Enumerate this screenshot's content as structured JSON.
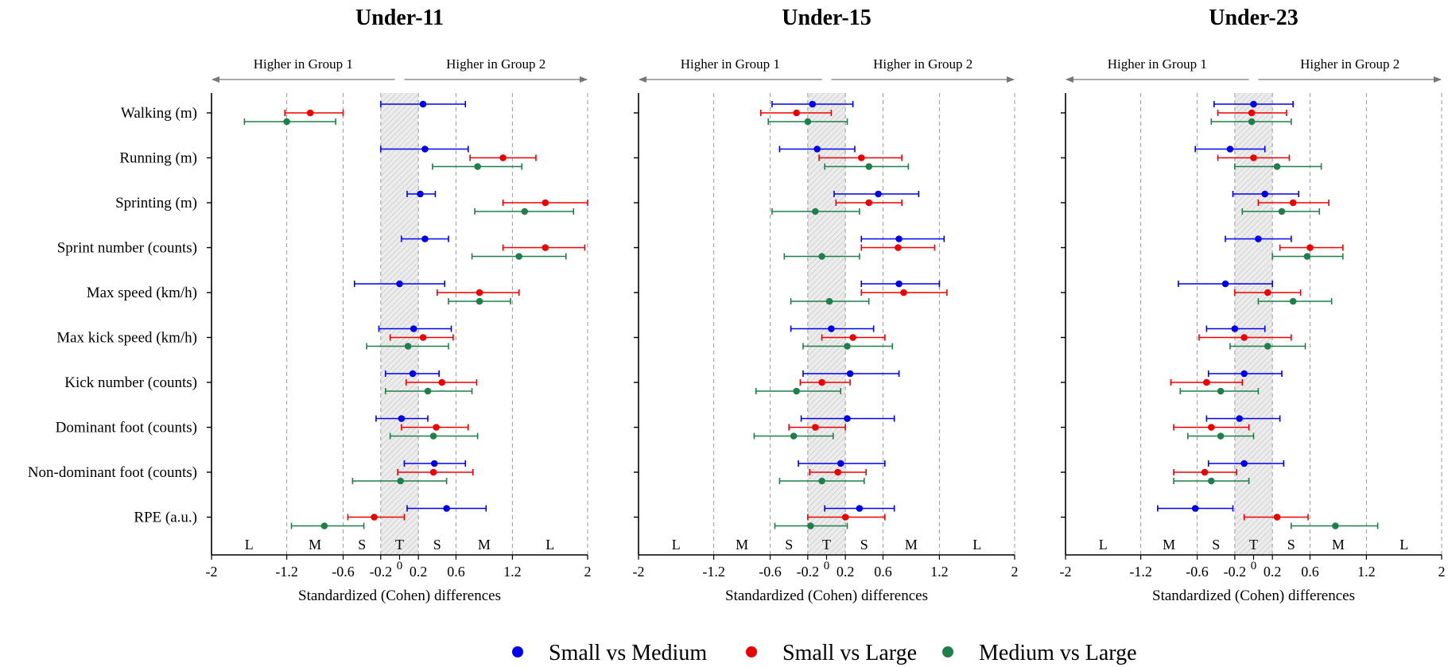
{
  "chart_data": {
    "type": "forest",
    "panels": [
      {
        "title": "Under-11",
        "series_values": {
          "Small vs Medium": [
            [
              0.25,
              -0.2,
              0.7
            ],
            [
              0.27,
              -0.2,
              0.73
            ],
            [
              0.22,
              0.08,
              0.38
            ],
            [
              0.27,
              0.02,
              0.52
            ],
            [
              0.0,
              -0.48,
              0.48
            ],
            [
              0.15,
              -0.22,
              0.55
            ],
            [
              0.14,
              -0.15,
              0.42
            ],
            [
              0.02,
              -0.25,
              0.3
            ],
            [
              0.37,
              0.05,
              0.7
            ],
            [
              0.5,
              0.08,
              0.92
            ]
          ],
          "Small vs Large": [
            [
              -0.95,
              -1.22,
              -0.6
            ],
            [
              1.1,
              0.75,
              1.45
            ],
            [
              1.55,
              1.1,
              2.0
            ],
            [
              1.55,
              1.1,
              1.97
            ],
            [
              0.85,
              0.4,
              1.27
            ],
            [
              0.25,
              -0.1,
              0.57
            ],
            [
              0.45,
              0.07,
              0.82
            ],
            [
              0.39,
              0.02,
              0.73
            ],
            [
              0.36,
              -0.02,
              0.78
            ],
            [
              -0.27,
              -0.55,
              0.05
            ]
          ],
          "Medium vs Large": [
            [
              -1.2,
              -1.65,
              -0.68
            ],
            [
              0.83,
              0.35,
              1.3
            ],
            [
              1.33,
              0.8,
              1.85
            ],
            [
              1.27,
              0.77,
              1.77
            ],
            [
              0.85,
              0.52,
              1.18
            ],
            [
              0.09,
              -0.35,
              0.52
            ],
            [
              0.3,
              -0.15,
              0.77
            ],
            [
              0.36,
              -0.1,
              0.83
            ],
            [
              0.01,
              -0.5,
              0.5
            ],
            [
              -0.8,
              -1.15,
              -0.38
            ]
          ]
        }
      },
      {
        "title": "Under-15",
        "series_values": {
          "Small vs Medium": [
            [
              -0.15,
              -0.58,
              0.28
            ],
            [
              -0.1,
              -0.5,
              0.3
            ],
            [
              0.55,
              0.08,
              0.98
            ],
            [
              0.77,
              0.37,
              1.25
            ],
            [
              0.77,
              0.37,
              1.2
            ],
            [
              0.05,
              -0.38,
              0.5
            ],
            [
              0.25,
              -0.25,
              0.77
            ],
            [
              0.22,
              -0.27,
              0.72
            ],
            [
              0.15,
              -0.3,
              0.62
            ],
            [
              0.35,
              -0.02,
              0.72
            ]
          ],
          "Small vs Large": [
            [
              -0.32,
              -0.7,
              0.05
            ],
            [
              0.37,
              -0.08,
              0.8
            ],
            [
              0.45,
              0.1,
              0.8
            ],
            [
              0.76,
              0.37,
              1.15
            ],
            [
              0.82,
              0.37,
              1.28
            ],
            [
              0.28,
              -0.05,
              0.62
            ],
            [
              -0.05,
              -0.28,
              0.25
            ],
            [
              -0.12,
              -0.4,
              0.2
            ],
            [
              0.12,
              -0.18,
              0.42
            ],
            [
              0.2,
              -0.2,
              0.62
            ]
          ],
          "Medium vs Large": [
            [
              -0.2,
              -0.62,
              0.22
            ],
            [
              0.45,
              -0.02,
              0.87
            ],
            [
              -0.12,
              -0.58,
              0.35
            ],
            [
              -0.05,
              -0.45,
              0.35
            ],
            [
              0.03,
              -0.38,
              0.45
            ],
            [
              0.22,
              -0.25,
              0.7
            ],
            [
              -0.32,
              -0.75,
              0.15
            ],
            [
              -0.35,
              -0.77,
              0.07
            ],
            [
              -0.05,
              -0.5,
              0.4
            ],
            [
              -0.17,
              -0.55,
              0.22
            ]
          ]
        }
      },
      {
        "title": "Under-23",
        "series_values": {
          "Small vs Medium": [
            [
              0.0,
              -0.42,
              0.42
            ],
            [
              -0.25,
              -0.62,
              0.12
            ],
            [
              0.12,
              -0.22,
              0.48
            ],
            [
              0.05,
              -0.3,
              0.4
            ],
            [
              -0.3,
              -0.8,
              0.2
            ],
            [
              -0.2,
              -0.5,
              0.12
            ],
            [
              -0.1,
              -0.48,
              0.3
            ],
            [
              -0.15,
              -0.5,
              0.28
            ],
            [
              -0.1,
              -0.48,
              0.32
            ],
            [
              -0.62,
              -1.02,
              -0.22
            ]
          ],
          "Small vs Large": [
            [
              -0.02,
              -0.38,
              0.35
            ],
            [
              0.0,
              -0.38,
              0.38
            ],
            [
              0.42,
              0.05,
              0.8
            ],
            [
              0.6,
              0.28,
              0.95
            ],
            [
              0.15,
              -0.2,
              0.5
            ],
            [
              -0.1,
              -0.58,
              0.4
            ],
            [
              -0.5,
              -0.88,
              -0.12
            ],
            [
              -0.45,
              -0.85,
              -0.05
            ],
            [
              -0.52,
              -0.85,
              -0.18
            ],
            [
              0.25,
              -0.1,
              0.58
            ]
          ],
          "Medium vs Large": [
            [
              -0.02,
              -0.45,
              0.4
            ],
            [
              0.25,
              -0.2,
              0.72
            ],
            [
              0.3,
              -0.12,
              0.7
            ],
            [
              0.57,
              0.2,
              0.95
            ],
            [
              0.42,
              0.05,
              0.83
            ],
            [
              0.15,
              -0.25,
              0.55
            ],
            [
              -0.35,
              -0.78,
              0.05
            ],
            [
              -0.35,
              -0.7,
              0.0
            ],
            [
              -0.45,
              -0.85,
              -0.05
            ],
            [
              0.87,
              0.4,
              1.32
            ]
          ]
        }
      }
    ],
    "categories": [
      "Walking (m)",
      "Running (m)",
      "Sprinting (m)",
      "Sprint number (counts)",
      "Max speed (km/h)",
      "Max kick speed (km/h)",
      "Kick number (counts)",
      "Dominant foot (counts)",
      "Non-dominant foot (counts)",
      "RPE (a.u.)"
    ],
    "series": [
      {
        "name": "Small vs Medium",
        "color": "#0000ee"
      },
      {
        "name": "Small vs Large",
        "color": "#ee0000"
      },
      {
        "name": "Medium vs Large",
        "color": "#1f7f4a"
      }
    ],
    "x_ticks": [
      -2,
      -1.2,
      -0.6,
      -0.2,
      0,
      0.2,
      0.6,
      1.2,
      2
    ],
    "x_tick_labels": [
      "-2",
      "-1.2",
      "-0.6",
      "-0.2",
      "0",
      "0.2",
      "0.6",
      "1.2",
      "2"
    ],
    "xlim": [
      -2,
      2
    ],
    "trivial_band": [
      -0.2,
      0.2
    ],
    "magnitude_labels": [
      {
        "label": "L",
        "x": -1.6
      },
      {
        "label": "M",
        "x": -0.9
      },
      {
        "label": "S",
        "x": -0.4
      },
      {
        "label": "T",
        "x": 0
      },
      {
        "label": "S",
        "x": 0.4
      },
      {
        "label": "M",
        "x": 0.9
      },
      {
        "label": "L",
        "x": 1.6
      }
    ],
    "direction_labels": {
      "left": "Higher in Group 1",
      "right": "Higher in Group 2"
    },
    "xlabel": "Standardized (Cohen) differences",
    "legend_placement": "bottom-center"
  }
}
